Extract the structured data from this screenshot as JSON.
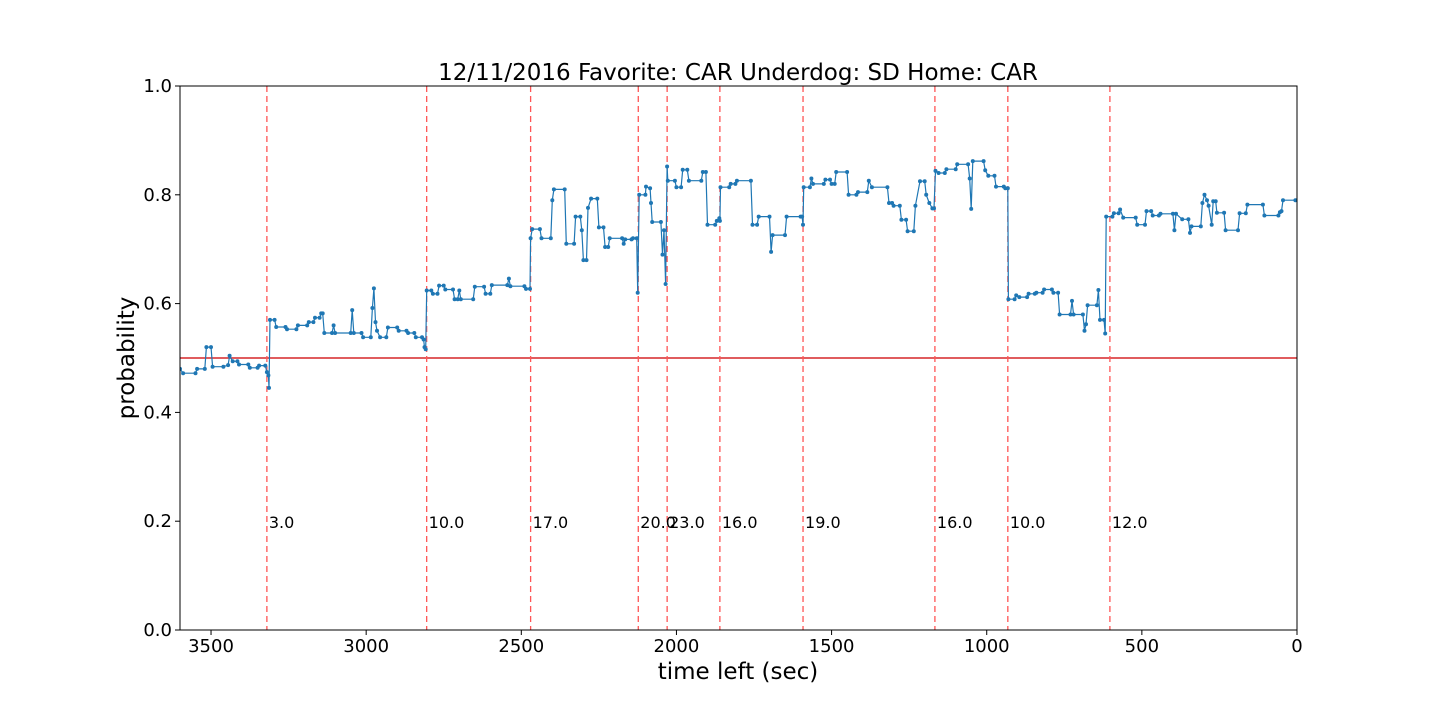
{
  "chart_data": {
    "type": "line",
    "title": "12/11/2016 Favorite: CAR Underdog: SD Home: CAR",
    "xlabel": "time left (sec)",
    "ylabel": "probability",
    "xlim": [
      3600,
      0
    ],
    "ylim": [
      0.0,
      1.0
    ],
    "x_ticks": [
      3500,
      3000,
      2500,
      2000,
      1500,
      1000,
      500,
      0
    ],
    "y_ticks": [
      0.0,
      0.2,
      0.4,
      0.6,
      0.8,
      1.0
    ],
    "grid": false,
    "reference_line": {
      "y": 0.5,
      "color": "#d62728"
    },
    "series": [
      {
        "color": "#1f77b4",
        "points": [
          [
            3600,
            0.48
          ],
          [
            3590,
            0.472
          ],
          [
            3550,
            0.472
          ],
          [
            3545,
            0.48
          ],
          [
            3520,
            0.48
          ],
          [
            3515,
            0.52
          ],
          [
            3500,
            0.52
          ],
          [
            3495,
            0.484
          ],
          [
            3460,
            0.484
          ],
          [
            3445,
            0.487
          ],
          [
            3440,
            0.504
          ],
          [
            3430,
            0.494
          ],
          [
            3415,
            0.494
          ],
          [
            3410,
            0.488
          ],
          [
            3380,
            0.488
          ],
          [
            3375,
            0.482
          ],
          [
            3350,
            0.482
          ],
          [
            3345,
            0.486
          ],
          [
            3325,
            0.486
          ],
          [
            3320,
            0.474
          ],
          [
            3315,
            0.468
          ],
          [
            3313,
            0.445
          ],
          [
            3310,
            0.57
          ],
          [
            3295,
            0.57
          ],
          [
            3290,
            0.557
          ],
          [
            3260,
            0.557
          ],
          [
            3255,
            0.553
          ],
          [
            3225,
            0.553
          ],
          [
            3220,
            0.56
          ],
          [
            3190,
            0.56
          ],
          [
            3185,
            0.566
          ],
          [
            3170,
            0.566
          ],
          [
            3165,
            0.574
          ],
          [
            3150,
            0.574
          ],
          [
            3145,
            0.582
          ],
          [
            3140,
            0.582
          ],
          [
            3135,
            0.546
          ],
          [
            3110,
            0.546
          ],
          [
            3105,
            0.56
          ],
          [
            3100,
            0.546
          ],
          [
            3050,
            0.546
          ],
          [
            3045,
            0.588
          ],
          [
            3040,
            0.546
          ],
          [
            3015,
            0.546
          ],
          [
            3010,
            0.538
          ],
          [
            2985,
            0.538
          ],
          [
            2980,
            0.592
          ],
          [
            2975,
            0.628
          ],
          [
            2970,
            0.566
          ],
          [
            2965,
            0.55
          ],
          [
            2955,
            0.538
          ],
          [
            2935,
            0.538
          ],
          [
            2930,
            0.556
          ],
          [
            2900,
            0.556
          ],
          [
            2895,
            0.55
          ],
          [
            2870,
            0.55
          ],
          [
            2865,
            0.546
          ],
          [
            2845,
            0.546
          ],
          [
            2840,
            0.538
          ],
          [
            2820,
            0.538
          ],
          [
            2815,
            0.534
          ],
          [
            2812,
            0.52
          ],
          [
            2808,
            0.516
          ],
          [
            2805,
            0.624
          ],
          [
            2790,
            0.624
          ],
          [
            2785,
            0.618
          ],
          [
            2770,
            0.618
          ],
          [
            2765,
            0.633
          ],
          [
            2750,
            0.633
          ],
          [
            2745,
            0.626
          ],
          [
            2720,
            0.626
          ],
          [
            2715,
            0.608
          ],
          [
            2705,
            0.608
          ],
          [
            2700,
            0.624
          ],
          [
            2695,
            0.608
          ],
          [
            2655,
            0.608
          ],
          [
            2650,
            0.631
          ],
          [
            2620,
            0.631
          ],
          [
            2615,
            0.618
          ],
          [
            2600,
            0.618
          ],
          [
            2595,
            0.634
          ],
          [
            2545,
            0.634
          ],
          [
            2540,
            0.646
          ],
          [
            2535,
            0.632
          ],
          [
            2490,
            0.632
          ],
          [
            2485,
            0.627
          ],
          [
            2472,
            0.627
          ],
          [
            2470,
            0.72
          ],
          [
            2465,
            0.737
          ],
          [
            2440,
            0.737
          ],
          [
            2435,
            0.72
          ],
          [
            2405,
            0.72
          ],
          [
            2400,
            0.79
          ],
          [
            2395,
            0.81
          ],
          [
            2360,
            0.81
          ],
          [
            2355,
            0.71
          ],
          [
            2330,
            0.71
          ],
          [
            2325,
            0.76
          ],
          [
            2310,
            0.76
          ],
          [
            2305,
            0.735
          ],
          [
            2300,
            0.68
          ],
          [
            2290,
            0.68
          ],
          [
            2285,
            0.776
          ],
          [
            2275,
            0.793
          ],
          [
            2255,
            0.793
          ],
          [
            2250,
            0.74
          ],
          [
            2235,
            0.74
          ],
          [
            2230,
            0.704
          ],
          [
            2220,
            0.704
          ],
          [
            2215,
            0.72
          ],
          [
            2175,
            0.72
          ],
          [
            2170,
            0.71
          ],
          [
            2165,
            0.718
          ],
          [
            2145,
            0.718
          ],
          [
            2140,
            0.72
          ],
          [
            2128,
            0.72
          ],
          [
            2125,
            0.62
          ],
          [
            2120,
            0.8
          ],
          [
            2100,
            0.8
          ],
          [
            2098,
            0.815
          ],
          [
            2085,
            0.812
          ],
          [
            2082,
            0.785
          ],
          [
            2078,
            0.75
          ],
          [
            2050,
            0.75
          ],
          [
            2045,
            0.69
          ],
          [
            2040,
            0.735
          ],
          [
            2035,
            0.636
          ],
          [
            2030,
            0.852
          ],
          [
            2028,
            0.826
          ],
          [
            2005,
            0.826
          ],
          [
            2000,
            0.814
          ],
          [
            1985,
            0.814
          ],
          [
            1980,
            0.846
          ],
          [
            1965,
            0.846
          ],
          [
            1960,
            0.826
          ],
          [
            1920,
            0.826
          ],
          [
            1915,
            0.842
          ],
          [
            1905,
            0.842
          ],
          [
            1900,
            0.745
          ],
          [
            1875,
            0.745
          ],
          [
            1870,
            0.752
          ],
          [
            1862,
            0.757
          ],
          [
            1860,
            0.752
          ],
          [
            1858,
            0.814
          ],
          [
            1830,
            0.814
          ],
          [
            1825,
            0.82
          ],
          [
            1810,
            0.82
          ],
          [
            1805,
            0.826
          ],
          [
            1760,
            0.826
          ],
          [
            1755,
            0.745
          ],
          [
            1740,
            0.745
          ],
          [
            1735,
            0.76
          ],
          [
            1700,
            0.76
          ],
          [
            1695,
            0.695
          ],
          [
            1690,
            0.726
          ],
          [
            1650,
            0.726
          ],
          [
            1645,
            0.76
          ],
          [
            1600,
            0.76
          ],
          [
            1595,
            0.76
          ],
          [
            1592,
            0.745
          ],
          [
            1590,
            0.814
          ],
          [
            1570,
            0.814
          ],
          [
            1565,
            0.83
          ],
          [
            1560,
            0.82
          ],
          [
            1525,
            0.82
          ],
          [
            1520,
            0.828
          ],
          [
            1505,
            0.828
          ],
          [
            1500,
            0.82
          ],
          [
            1490,
            0.82
          ],
          [
            1485,
            0.842
          ],
          [
            1450,
            0.842
          ],
          [
            1445,
            0.8
          ],
          [
            1420,
            0.8
          ],
          [
            1415,
            0.805
          ],
          [
            1385,
            0.805
          ],
          [
            1380,
            0.826
          ],
          [
            1370,
            0.814
          ],
          [
            1320,
            0.814
          ],
          [
            1315,
            0.785
          ],
          [
            1305,
            0.785
          ],
          [
            1300,
            0.78
          ],
          [
            1280,
            0.78
          ],
          [
            1275,
            0.754
          ],
          [
            1260,
            0.754
          ],
          [
            1255,
            0.733
          ],
          [
            1235,
            0.733
          ],
          [
            1230,
            0.78
          ],
          [
            1215,
            0.825
          ],
          [
            1200,
            0.825
          ],
          [
            1195,
            0.8
          ],
          [
            1185,
            0.785
          ],
          [
            1175,
            0.775
          ],
          [
            1170,
            0.775
          ],
          [
            1165,
            0.844
          ],
          [
            1155,
            0.84
          ],
          [
            1135,
            0.84
          ],
          [
            1130,
            0.847
          ],
          [
            1100,
            0.847
          ],
          [
            1095,
            0.856
          ],
          [
            1060,
            0.856
          ],
          [
            1055,
            0.83
          ],
          [
            1050,
            0.774
          ],
          [
            1045,
            0.862
          ],
          [
            1010,
            0.862
          ],
          [
            1005,
            0.845
          ],
          [
            995,
            0.835
          ],
          [
            975,
            0.835
          ],
          [
            970,
            0.815
          ],
          [
            945,
            0.815
          ],
          [
            940,
            0.812
          ],
          [
            932,
            0.812
          ],
          [
            930,
            0.608
          ],
          [
            910,
            0.608
          ],
          [
            905,
            0.615
          ],
          [
            895,
            0.612
          ],
          [
            870,
            0.612
          ],
          [
            865,
            0.618
          ],
          [
            845,
            0.618
          ],
          [
            840,
            0.62
          ],
          [
            820,
            0.62
          ],
          [
            815,
            0.626
          ],
          [
            790,
            0.626
          ],
          [
            785,
            0.62
          ],
          [
            770,
            0.62
          ],
          [
            765,
            0.58
          ],
          [
            730,
            0.58
          ],
          [
            725,
            0.605
          ],
          [
            720,
            0.58
          ],
          [
            690,
            0.58
          ],
          [
            685,
            0.55
          ],
          [
            680,
            0.562
          ],
          [
            675,
            0.597
          ],
          [
            645,
            0.597
          ],
          [
            640,
            0.625
          ],
          [
            635,
            0.57
          ],
          [
            622,
            0.57
          ],
          [
            618,
            0.545
          ],
          [
            615,
            0.76
          ],
          [
            595,
            0.76
          ],
          [
            590,
            0.766
          ],
          [
            575,
            0.766
          ],
          [
            570,
            0.773
          ],
          [
            560,
            0.758
          ],
          [
            520,
            0.758
          ],
          [
            515,
            0.745
          ],
          [
            490,
            0.745
          ],
          [
            485,
            0.77
          ],
          [
            470,
            0.77
          ],
          [
            465,
            0.762
          ],
          [
            445,
            0.762
          ],
          [
            440,
            0.765
          ],
          [
            400,
            0.765
          ],
          [
            395,
            0.735
          ],
          [
            390,
            0.765
          ],
          [
            370,
            0.755
          ],
          [
            350,
            0.755
          ],
          [
            345,
            0.73
          ],
          [
            340,
            0.742
          ],
          [
            310,
            0.742
          ],
          [
            305,
            0.785
          ],
          [
            298,
            0.8
          ],
          [
            290,
            0.79
          ],
          [
            285,
            0.78
          ],
          [
            275,
            0.745
          ],
          [
            270,
            0.788
          ],
          [
            262,
            0.788
          ],
          [
            258,
            0.767
          ],
          [
            235,
            0.767
          ],
          [
            230,
            0.735
          ],
          [
            190,
            0.735
          ],
          [
            185,
            0.766
          ],
          [
            165,
            0.766
          ],
          [
            160,
            0.782
          ],
          [
            110,
            0.782
          ],
          [
            105,
            0.762
          ],
          [
            60,
            0.762
          ],
          [
            55,
            0.768
          ],
          [
            50,
            0.77
          ],
          [
            45,
            0.79
          ],
          [
            5,
            0.79
          ]
        ]
      }
    ],
    "annotations": [
      {
        "x": 3320,
        "label": "3.0"
      },
      {
        "x": 2805,
        "label": "10.0"
      },
      {
        "x": 2470,
        "label": "17.0"
      },
      {
        "x": 2123,
        "label": "20.0"
      },
      {
        "x": 2030,
        "label": "23.0"
      },
      {
        "x": 1860,
        "label": "16.0"
      },
      {
        "x": 1592,
        "label": "19.0"
      },
      {
        "x": 1167,
        "label": "16.0"
      },
      {
        "x": 932,
        "label": "10.0"
      },
      {
        "x": 603,
        "label": "12.0"
      }
    ],
    "annotation_line_color": "#ff5555",
    "annotation_label_y": 0.2
  }
}
